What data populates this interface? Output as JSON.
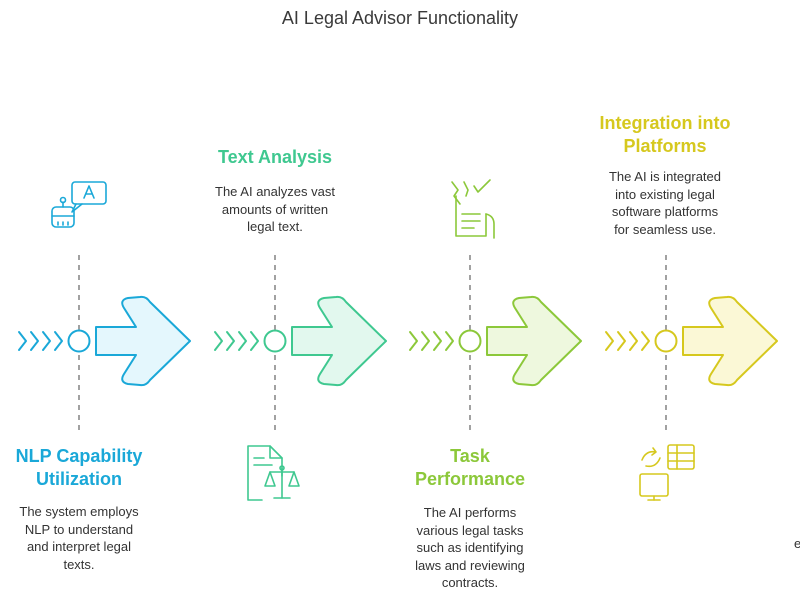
{
  "title": "AI Legal Advisor Functionality",
  "colors": {
    "blue": "#1aa8d8",
    "green": "#3fc890",
    "lime": "#8cc83a",
    "yellow": "#d6c81e",
    "text": "#333333",
    "dashed_line": "#8a8a8a"
  },
  "steps": [
    {
      "heading_line1": "NLP Capability",
      "heading_line2": "Utilization",
      "desc_lines": [
        "The system employs",
        "NLP to understand",
        "and interpret legal",
        "texts."
      ],
      "icon": "robot-translate-icon",
      "color": "#1aa8d8",
      "fill": "#e4f7fd"
    },
    {
      "heading_line1": "Text Analysis",
      "heading_line2": "",
      "desc_lines": [
        "The AI analyzes vast",
        "amounts of written",
        "legal text."
      ],
      "icon": "legal-document-scale-icon",
      "color": "#3fc890",
      "fill": "#e2f8ee"
    },
    {
      "heading_line1": "Task",
      "heading_line2": "Performance",
      "desc_lines": [
        "The AI performs",
        "various legal tasks",
        "such as identifying",
        "laws and reviewing",
        "contracts."
      ],
      "icon": "checklist-hand-icon",
      "color": "#8cc83a",
      "fill": "#eef8de"
    },
    {
      "heading_line1": "Integration into",
      "heading_line2": "Platforms",
      "desc_lines": [
        "The AI is integrated",
        "into existing legal",
        "software platforms",
        "for seamless use."
      ],
      "icon": "monitor-sync-table-icon",
      "color": "#d6c81e",
      "fill": "#fbf8d6"
    }
  ],
  "stray_text": "e"
}
